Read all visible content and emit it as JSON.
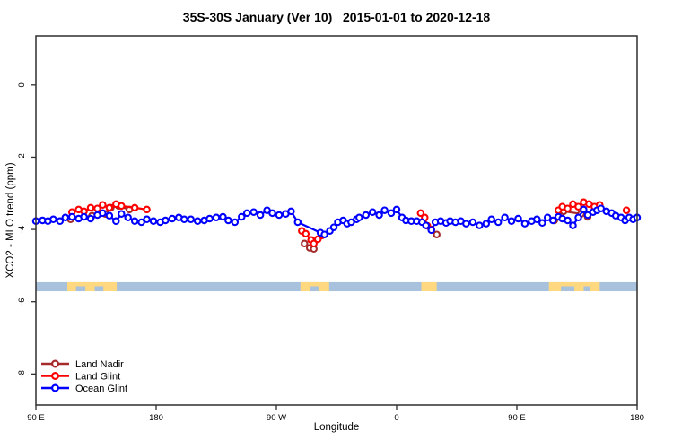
{
  "colors": {
    "land_nadir": "#A52A2A",
    "land_glint": "#FF0000",
    "ocean_glint": "#0000FF",
    "ocean_strip": "#A8C2DE",
    "land_strip": "#FFD87F",
    "frame": "#2E2E2E",
    "text": "#000000",
    "marker_fill": "#FFFFFF"
  },
  "legend": {
    "position": "bottom-left",
    "items": [
      {
        "label": "Land Nadir",
        "color_key": "land_nadir",
        "marker": "line-open-circle"
      },
      {
        "label": "Land Glint",
        "color_key": "land_glint",
        "marker": "line-open-circle"
      },
      {
        "label": "Ocean Glint",
        "color_key": "ocean_glint",
        "marker": "line-open-circle"
      }
    ]
  },
  "chart_data": {
    "type": "scatter",
    "title": "35S-30S January (Ver 10)   2015-01-01 to 2020-12-18",
    "xlabel": "Longitude",
    "ylabel": "XCO2 - MLO trend (ppm)",
    "x_axis_note": "x = degrees eastward from 90E; axis wraps 90E>180>90W>0>90E>180",
    "x_range": [
      0,
      450
    ],
    "y_range": [
      -8.86,
      1.36
    ],
    "grid": false,
    "x_ticks": [
      {
        "pos": 0,
        "label": "90 E"
      },
      {
        "pos": 90,
        "label": "180"
      },
      {
        "pos": 180,
        "label": "90 W"
      },
      {
        "pos": 270,
        "label": "0"
      },
      {
        "pos": 360,
        "label": "90 E"
      },
      {
        "pos": 450,
        "label": "180"
      }
    ],
    "y_ticks": [
      {
        "pos": 0,
        "label": "0"
      },
      {
        "pos": -2,
        "label": "-2"
      },
      {
        "pos": -4,
        "label": "-4"
      },
      {
        "pos": -6,
        "label": "-6"
      },
      {
        "pos": -8,
        "label": "-8"
      }
    ],
    "gap_break_threshold": 17,
    "series": [
      {
        "name": "Land Nadir",
        "color_key": "land_nadir",
        "points": [
          [
            26,
            -3.72
          ],
          [
            42,
            -3.62
          ],
          [
            52,
            -3.57
          ],
          [
            56,
            -3.4
          ],
          [
            62,
            -3.35
          ],
          [
            70,
            -3.45
          ],
          [
            201,
            -4.39
          ],
          [
            205,
            -4.51
          ],
          [
            208,
            -4.54
          ],
          [
            300,
            -4.14
          ],
          [
            388,
            -3.75
          ],
          [
            395,
            -3.5
          ],
          [
            408,
            -3.57
          ],
          [
            413,
            -3.65
          ]
        ]
      },
      {
        "name": "Land Glint",
        "color_key": "land_glint",
        "points": [
          [
            27,
            -3.52
          ],
          [
            32,
            -3.45
          ],
          [
            36,
            -3.5
          ],
          [
            41,
            -3.4
          ],
          [
            46,
            -3.42
          ],
          [
            50,
            -3.32
          ],
          [
            55,
            -3.4
          ],
          [
            60,
            -3.3
          ],
          [
            64,
            -3.35
          ],
          [
            74,
            -3.4
          ],
          [
            83,
            -3.45
          ],
          [
            199,
            -4.04
          ],
          [
            202,
            -4.12
          ],
          [
            206,
            -4.29
          ],
          [
            208,
            -4.39
          ],
          [
            211,
            -4.27
          ],
          [
            214,
            -4.17
          ],
          [
            288,
            -3.55
          ],
          [
            291,
            -3.67
          ],
          [
            293,
            -3.9
          ],
          [
            296,
            -4.0
          ],
          [
            391,
            -3.47
          ],
          [
            394,
            -3.37
          ],
          [
            398,
            -3.42
          ],
          [
            402,
            -3.3
          ],
          [
            406,
            -3.37
          ],
          [
            410,
            -3.25
          ],
          [
            414,
            -3.3
          ],
          [
            418,
            -3.37
          ],
          [
            422,
            -3.32
          ],
          [
            442,
            -3.47
          ]
        ]
      },
      {
        "name": "Ocean Glint",
        "color_key": "ocean_glint",
        "points": [
          [
            0,
            -3.77
          ],
          [
            5,
            -3.75
          ],
          [
            9,
            -3.77
          ],
          [
            13,
            -3.72
          ],
          [
            18,
            -3.77
          ],
          [
            22,
            -3.67
          ],
          [
            27,
            -3.65
          ],
          [
            32,
            -3.7
          ],
          [
            36,
            -3.65
          ],
          [
            41,
            -3.7
          ],
          [
            46,
            -3.6
          ],
          [
            50,
            -3.55
          ],
          [
            55,
            -3.62
          ],
          [
            60,
            -3.77
          ],
          [
            64,
            -3.57
          ],
          [
            69,
            -3.67
          ],
          [
            74,
            -3.77
          ],
          [
            79,
            -3.8
          ],
          [
            83,
            -3.72
          ],
          [
            88,
            -3.77
          ],
          [
            93,
            -3.8
          ],
          [
            97,
            -3.75
          ],
          [
            102,
            -3.7
          ],
          [
            107,
            -3.67
          ],
          [
            111,
            -3.72
          ],
          [
            116,
            -3.72
          ],
          [
            121,
            -3.77
          ],
          [
            126,
            -3.75
          ],
          [
            130,
            -3.7
          ],
          [
            135,
            -3.67
          ],
          [
            140,
            -3.65
          ],
          [
            144,
            -3.75
          ],
          [
            149,
            -3.8
          ],
          [
            154,
            -3.65
          ],
          [
            158,
            -3.55
          ],
          [
            163,
            -3.52
          ],
          [
            168,
            -3.6
          ],
          [
            173,
            -3.47
          ],
          [
            177,
            -3.55
          ],
          [
            182,
            -3.6
          ],
          [
            187,
            -3.57
          ],
          [
            191,
            -3.5
          ],
          [
            196,
            -3.8
          ],
          [
            213,
            -4.09
          ],
          [
            216,
            -4.14
          ],
          [
            220,
            -4.04
          ],
          [
            223,
            -3.94
          ],
          [
            226,
            -3.8
          ],
          [
            230,
            -3.75
          ],
          [
            233,
            -3.84
          ],
          [
            236,
            -3.8
          ],
          [
            240,
            -3.72
          ],
          [
            242,
            -3.67
          ],
          [
            247,
            -3.6
          ],
          [
            252,
            -3.52
          ],
          [
            257,
            -3.6
          ],
          [
            261,
            -3.47
          ],
          [
            266,
            -3.55
          ],
          [
            270,
            -3.45
          ],
          [
            274,
            -3.67
          ],
          [
            277,
            -3.75
          ],
          [
            281,
            -3.77
          ],
          [
            285,
            -3.77
          ],
          [
            289,
            -3.8
          ],
          [
            292,
            -3.89
          ],
          [
            296,
            -4.02
          ],
          [
            299,
            -3.8
          ],
          [
            303,
            -3.77
          ],
          [
            307,
            -3.82
          ],
          [
            310,
            -3.77
          ],
          [
            314,
            -3.8
          ],
          [
            318,
            -3.77
          ],
          [
            322,
            -3.84
          ],
          [
            327,
            -3.8
          ],
          [
            332,
            -3.89
          ],
          [
            337,
            -3.84
          ],
          [
            341,
            -3.72
          ],
          [
            346,
            -3.8
          ],
          [
            351,
            -3.67
          ],
          [
            356,
            -3.77
          ],
          [
            361,
            -3.7
          ],
          [
            366,
            -3.84
          ],
          [
            371,
            -3.77
          ],
          [
            375,
            -3.72
          ],
          [
            379,
            -3.82
          ],
          [
            383,
            -3.67
          ],
          [
            387,
            -3.75
          ],
          [
            391,
            -3.65
          ],
          [
            394,
            -3.7
          ],
          [
            398,
            -3.75
          ],
          [
            402,
            -3.89
          ],
          [
            406,
            -3.67
          ],
          [
            410,
            -3.45
          ],
          [
            413,
            -3.6
          ],
          [
            417,
            -3.52
          ],
          [
            420,
            -3.47
          ],
          [
            423,
            -3.42
          ],
          [
            427,
            -3.5
          ],
          [
            431,
            -3.55
          ],
          [
            434,
            -3.62
          ],
          [
            438,
            -3.67
          ],
          [
            441,
            -3.75
          ],
          [
            444,
            -3.67
          ],
          [
            447,
            -3.72
          ],
          [
            450,
            -3.67
          ]
        ]
      }
    ],
    "surface_strip": {
      "description": "land(yellow)/ocean(blue) surface type band",
      "y_top": -5.46,
      "y_bottom": -5.71,
      "land_segments": [
        [
          23.5,
          60.5
        ],
        [
          198,
          219.5
        ],
        [
          288.5,
          300
        ],
        [
          384,
          422
        ]
      ],
      "water_patches": [
        [
          30,
          37
        ],
        [
          44,
          50.5
        ],
        [
          205,
          211.5
        ],
        [
          393,
          403
        ],
        [
          410,
          415
        ]
      ]
    }
  }
}
